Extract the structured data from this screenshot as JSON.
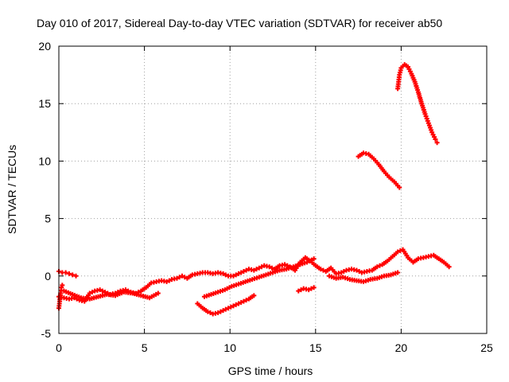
{
  "chart_data": {
    "type": "scatter",
    "title": "Day 010 of 2017, Sidereal Day-to-day VTEC variation (SDTVAR) for receiver ab50",
    "xlabel": "GPS time / hours",
    "ylabel": "SDTVAR / TECUs",
    "xlim": [
      0,
      25
    ],
    "ylim": [
      -5,
      20
    ],
    "xticks": [
      0,
      5,
      10,
      15,
      20,
      25
    ],
    "yticks": [
      -5,
      0,
      5,
      10,
      15,
      20
    ],
    "grid": true,
    "legend": "none",
    "marker": "+",
    "color": "#ff0000",
    "series": [
      {
        "x": [
          0.0,
          0.3,
          0.6,
          0.9,
          1.2,
          1.5,
          1.8,
          2.1,
          2.4,
          2.7,
          3.0,
          3.3,
          3.6,
          3.9,
          4.2,
          4.5,
          4.8,
          5.1,
          5.4,
          5.7,
          6.0,
          6.3,
          6.6,
          6.9,
          7.2,
          7.5,
          7.8,
          8.1,
          8.4,
          8.7,
          9.0,
          9.3,
          9.6,
          9.9,
          10.2,
          10.5,
          10.8,
          11.1,
          11.4,
          11.7,
          12.0,
          12.3,
          12.6,
          12.9,
          13.2,
          13.5,
          13.8,
          14.1,
          14.4,
          14.7,
          15.0,
          15.3,
          15.6,
          15.9,
          16.2,
          16.5,
          16.8,
          17.1,
          17.4,
          17.7,
          18.0,
          18.3,
          18.6,
          18.9,
          19.2,
          19.5,
          19.8,
          20.1,
          20.4,
          20.7,
          21.0,
          21.3,
          21.6,
          21.9,
          22.2,
          22.5,
          22.8
        ],
        "y": [
          -1.8,
          -1.9,
          -2.0,
          -1.9,
          -2.1,
          -2.2,
          -1.5,
          -1.3,
          -1.2,
          -1.4,
          -1.6,
          -1.5,
          -1.3,
          -1.2,
          -1.4,
          -1.5,
          -1.3,
          -1.0,
          -0.6,
          -0.5,
          -0.4,
          -0.5,
          -0.3,
          -0.2,
          0.0,
          -0.2,
          0.1,
          0.2,
          0.3,
          0.3,
          0.2,
          0.3,
          0.2,
          0.0,
          0.0,
          0.2,
          0.4,
          0.6,
          0.5,
          0.7,
          0.9,
          0.8,
          0.6,
          0.9,
          1.0,
          0.8,
          0.5,
          1.2,
          1.6,
          1.3,
          0.9,
          0.6,
          0.4,
          0.7,
          0.2,
          0.3,
          0.5,
          0.6,
          0.5,
          0.3,
          0.4,
          0.5,
          0.8,
          1.0,
          1.3,
          1.7,
          2.1,
          2.3,
          1.6,
          1.2,
          1.5,
          1.6,
          1.7,
          1.8,
          1.5,
          1.2,
          0.8
        ]
      },
      {
        "x": [
          0.0,
          0.2,
          0.4,
          0.6,
          0.8,
          1.0
        ],
        "y": [
          0.4,
          0.3,
          0.3,
          0.2,
          0.1,
          0.0
        ]
      },
      {
        "x": [
          0.0,
          0.05,
          0.1,
          0.15,
          0.2
        ],
        "y": [
          -2.8,
          -2.2,
          -1.5,
          -1.0,
          -0.8
        ]
      },
      {
        "x": [
          0.3,
          0.8,
          1.3,
          1.8,
          2.3,
          2.8,
          3.3,
          3.8,
          4.3,
          4.8,
          5.3,
          5.8
        ],
        "y": [
          -1.3,
          -1.6,
          -1.9,
          -2.0,
          -1.8,
          -1.6,
          -1.7,
          -1.4,
          -1.5,
          -1.7,
          -1.9,
          -1.5
        ]
      },
      {
        "x": [
          8.1,
          8.4,
          8.7,
          9.0,
          9.3,
          9.6,
          9.9,
          10.2,
          10.5,
          10.8,
          11.1,
          11.4
        ],
        "y": [
          -2.4,
          -2.8,
          -3.1,
          -3.3,
          -3.2,
          -3.0,
          -2.8,
          -2.6,
          -2.4,
          -2.2,
          -2.0,
          -1.7
        ]
      },
      {
        "x": [
          8.5,
          8.9,
          9.3,
          9.7,
          10.1,
          10.5,
          10.9,
          11.3,
          11.7,
          12.1,
          12.5,
          12.9,
          13.3,
          13.7,
          14.1,
          14.5,
          14.9
        ],
        "y": [
          -1.8,
          -1.6,
          -1.4,
          -1.2,
          -0.9,
          -0.7,
          -0.5,
          -0.3,
          -0.1,
          0.1,
          0.3,
          0.5,
          0.6,
          0.8,
          1.0,
          1.2,
          1.5
        ]
      },
      {
        "x": [
          14.0,
          14.3,
          14.6,
          14.9
        ],
        "y": [
          -1.3,
          -1.1,
          -1.2,
          -1.0
        ]
      },
      {
        "x": [
          15.8,
          16.2,
          16.6,
          17.0,
          17.4,
          17.8,
          18.2,
          18.6,
          19.0,
          19.4,
          19.8
        ],
        "y": [
          0.0,
          -0.2,
          -0.1,
          -0.3,
          -0.4,
          -0.5,
          -0.3,
          -0.2,
          0.0,
          0.1,
          0.3
        ]
      },
      {
        "x": [
          17.5,
          17.8,
          18.1,
          18.4,
          18.7,
          19.0,
          19.3,
          19.6,
          19.9
        ],
        "y": [
          10.4,
          10.7,
          10.6,
          10.2,
          9.7,
          9.1,
          8.6,
          8.2,
          7.7
        ]
      },
      {
        "x": [
          19.8,
          19.9,
          20.0,
          20.2,
          20.4,
          20.6,
          20.8,
          21.0,
          21.2,
          21.4,
          21.6,
          21.8,
          22.0,
          22.1
        ],
        "y": [
          16.3,
          17.5,
          18.1,
          18.4,
          18.2,
          17.6,
          16.9,
          16.0,
          15.0,
          14.1,
          13.3,
          12.5,
          11.9,
          11.6
        ]
      }
    ]
  }
}
